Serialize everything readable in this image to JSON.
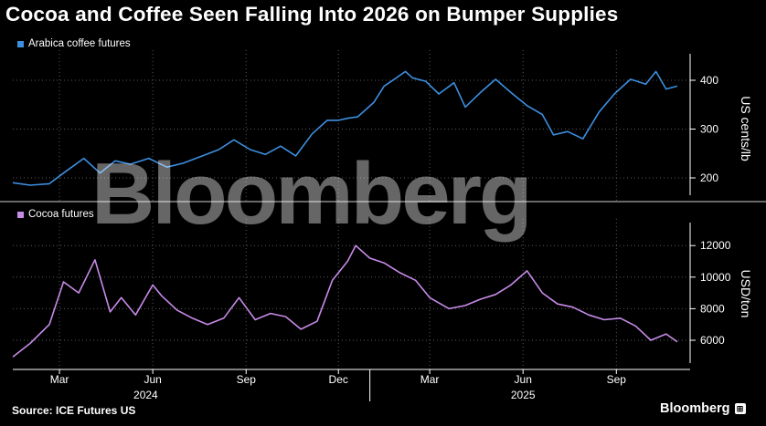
{
  "title": "Cocoa and Coffee Seen Falling Into 2026 on Bumper Supplies",
  "source": "Source: ICE Futures US",
  "brand": "Bloomberg",
  "watermark": "Bloomberg",
  "colors": {
    "coffee": "#3d8fe0",
    "cocoa": "#c78be8",
    "background": "#000000",
    "grid": "#5a5a5a"
  },
  "chart_data": [
    {
      "type": "line",
      "series": [
        {
          "name": "Arabica coffee futures"
        }
      ],
      "ylabel": "US cents/lb",
      "yticks": [
        200,
        300,
        400
      ],
      "ylim": [
        160,
        450
      ],
      "xlim": [
        "2024-01-15",
        "2025-11-01"
      ],
      "x_months": [
        "2024-03-01",
        "2024-06-01",
        "2024-09-01",
        "2024-12-01",
        "2025-03-01",
        "2025-06-01",
        "2025-09-01"
      ],
      "x": [
        "2024-01-15",
        "2024-02-01",
        "2024-02-20",
        "2024-03-05",
        "2024-03-25",
        "2024-04-10",
        "2024-04-25",
        "2024-05-10",
        "2024-05-28",
        "2024-06-15",
        "2024-07-01",
        "2024-07-20",
        "2024-08-05",
        "2024-08-20",
        "2024-09-05",
        "2024-09-20",
        "2024-10-05",
        "2024-10-20",
        "2024-11-05",
        "2024-11-20",
        "2024-12-01",
        "2024-12-10",
        "2024-12-20",
        "2025-01-05",
        "2025-01-15",
        "2025-01-25",
        "2025-02-05",
        "2025-02-12",
        "2025-02-25",
        "2025-03-10",
        "2025-03-25",
        "2025-04-05",
        "2025-04-20",
        "2025-05-05",
        "2025-05-20",
        "2025-06-05",
        "2025-06-20",
        "2025-07-01",
        "2025-07-15",
        "2025-07-30",
        "2025-08-15",
        "2025-08-30",
        "2025-09-15",
        "2025-09-30",
        "2025-10-10",
        "2025-10-20",
        "2025-10-31"
      ],
      "y": [
        190,
        185,
        188,
        210,
        240,
        210,
        235,
        228,
        240,
        222,
        230,
        245,
        258,
        278,
        258,
        248,
        265,
        245,
        290,
        318,
        318,
        322,
        325,
        355,
        388,
        402,
        418,
        405,
        398,
        372,
        395,
        345,
        375,
        402,
        375,
        348,
        330,
        288,
        295,
        280,
        335,
        372,
        402,
        392,
        418,
        382,
        388
      ]
    },
    {
      "type": "line",
      "series": [
        {
          "name": "Cocoa futures"
        }
      ],
      "ylabel": "USD/ton",
      "yticks": [
        6000,
        8000,
        10000,
        12000
      ],
      "ylim": [
        4800,
        12800
      ],
      "xlim": [
        "2024-01-15",
        "2025-11-01"
      ],
      "x_months": [
        "2024-03-01",
        "2024-06-01",
        "2024-09-01",
        "2024-12-01",
        "2025-03-01",
        "2025-06-01",
        "2025-09-01"
      ],
      "x_year_labels": [
        {
          "date": "2024-05-25",
          "label": "2024"
        },
        {
          "date": "2025-06-01",
          "label": "2025"
        }
      ],
      "x": [
        "2024-01-15",
        "2024-02-01",
        "2024-02-20",
        "2024-03-05",
        "2024-03-20",
        "2024-04-05",
        "2024-04-20",
        "2024-05-01",
        "2024-05-15",
        "2024-06-01",
        "2024-06-10",
        "2024-06-25",
        "2024-07-10",
        "2024-07-25",
        "2024-08-10",
        "2024-08-25",
        "2024-09-10",
        "2024-09-25",
        "2024-10-10",
        "2024-10-25",
        "2024-11-10",
        "2024-11-25",
        "2024-12-10",
        "2024-12-18",
        "2025-01-01",
        "2025-01-15",
        "2025-01-30",
        "2025-02-15",
        "2025-03-01",
        "2025-03-20",
        "2025-04-05",
        "2025-04-20",
        "2025-05-05",
        "2025-05-20",
        "2025-06-05",
        "2025-06-20",
        "2025-07-05",
        "2025-07-20",
        "2025-08-05",
        "2025-08-20",
        "2025-09-05",
        "2025-09-20",
        "2025-10-05",
        "2025-10-20",
        "2025-10-31"
      ],
      "y": [
        4950,
        5800,
        7000,
        9700,
        9000,
        11100,
        7800,
        8700,
        7600,
        9500,
        8800,
        7900,
        7400,
        7000,
        7400,
        8700,
        7300,
        7700,
        7500,
        6700,
        7200,
        9800,
        11000,
        12000,
        11200,
        10900,
        10300,
        9800,
        8700,
        8000,
        8200,
        8600,
        8900,
        9500,
        10400,
        9000,
        8300,
        8100,
        7600,
        7300,
        7400,
        6900,
        6000,
        6400,
        5900
      ]
    }
  ],
  "legend": {
    "coffee": "Arabica coffee futures",
    "cocoa": "Cocoa futures"
  },
  "axes": {
    "coffee_ylabel": "US cents/lb",
    "cocoa_ylabel": "USD/ton",
    "coffee_ticks": [
      "200",
      "300",
      "400"
    ],
    "cocoa_ticks": [
      "6000",
      "8000",
      "10000",
      "12000"
    ],
    "months": [
      "Mar",
      "Jun",
      "Sep",
      "Dec",
      "Mar",
      "Jun",
      "Sep"
    ],
    "years": [
      "2024",
      "2025"
    ]
  }
}
